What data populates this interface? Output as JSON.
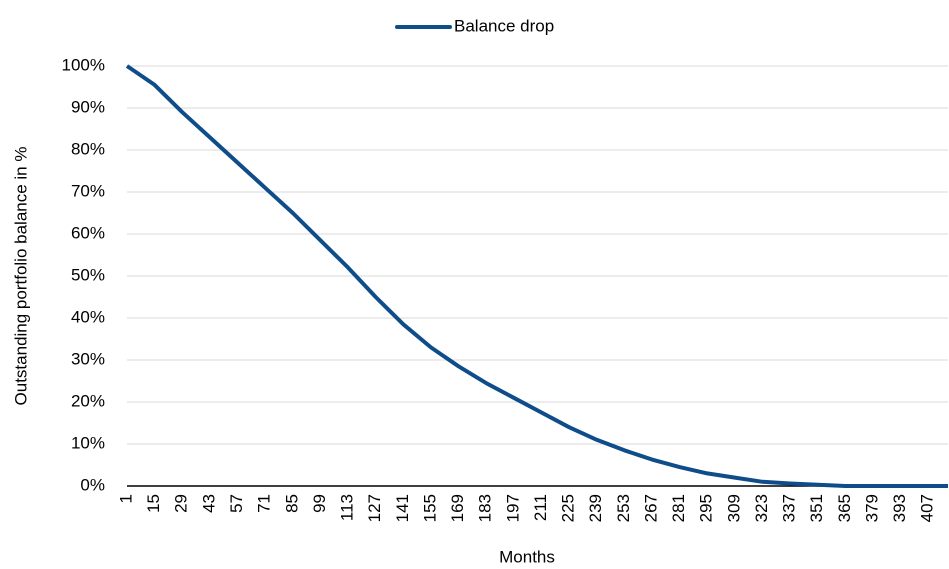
{
  "chart_data": {
    "type": "line",
    "x": [
      1,
      15,
      29,
      43,
      57,
      71,
      85,
      99,
      113,
      127,
      141,
      155,
      169,
      183,
      197,
      211,
      225,
      239,
      253,
      267,
      281,
      295,
      309,
      323,
      337,
      351,
      365,
      379,
      393,
      407,
      417
    ],
    "series": [
      {
        "name": "Balance drop",
        "color": "#0e4d8a",
        "values": [
          100,
          95.5,
          89,
          83,
          77,
          71,
          65,
          58.5,
          52,
          45,
          38.5,
          33,
          28.5,
          24.5,
          21,
          17.5,
          14,
          11,
          8.5,
          6.3,
          4.5,
          3,
          2,
          1,
          0.6,
          0.3,
          0,
          0,
          0,
          0,
          0
        ]
      }
    ],
    "xlabel": "Months",
    "ylabel": "Outstanding portfolio balance in %",
    "xlim": [
      1,
      417
    ],
    "xticks": [
      1,
      15,
      29,
      43,
      57,
      71,
      85,
      99,
      113,
      127,
      141,
      155,
      169,
      183,
      197,
      211,
      225,
      239,
      253,
      267,
      281,
      295,
      309,
      323,
      337,
      351,
      365,
      379,
      393,
      407
    ],
    "ylim": [
      0,
      100
    ],
    "yticks": [
      {
        "value": 0,
        "label": "0%"
      },
      {
        "value": 10,
        "label": "10%"
      },
      {
        "value": 20,
        "label": "20%"
      },
      {
        "value": 30,
        "label": "30%"
      },
      {
        "value": 40,
        "label": "40%"
      },
      {
        "value": 50,
        "label": "50%"
      },
      {
        "value": 60,
        "label": "60%"
      },
      {
        "value": 70,
        "label": "70%"
      },
      {
        "value": 80,
        "label": "80%"
      },
      {
        "value": 90,
        "label": "90%"
      },
      {
        "value": 100,
        "label": "100%"
      }
    ],
    "grid": true,
    "legend": "top"
  }
}
